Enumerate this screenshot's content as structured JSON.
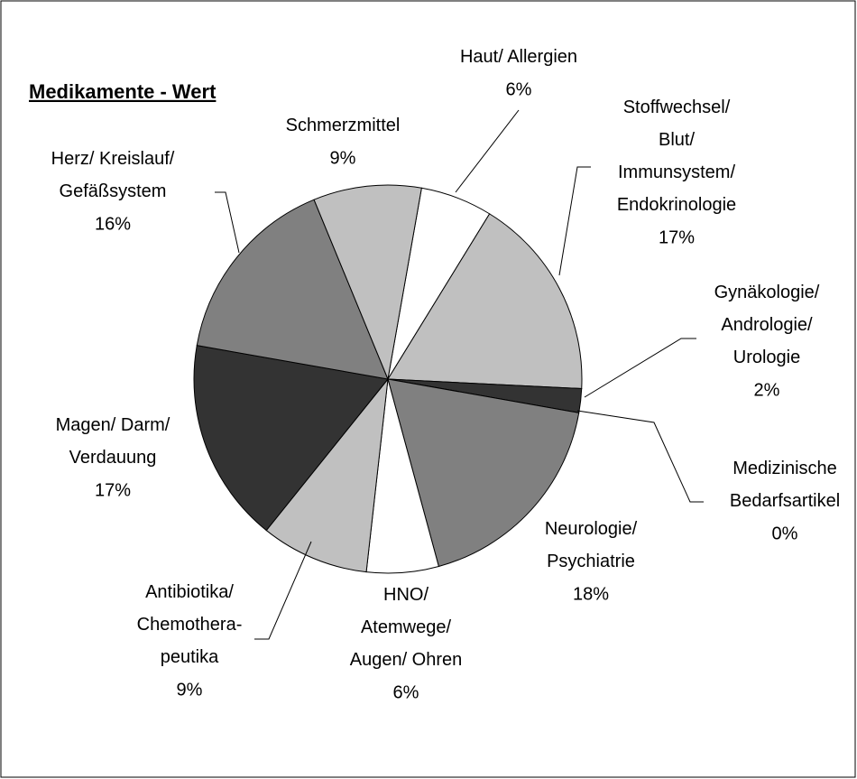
{
  "chart_data": {
    "type": "pie",
    "title": "Medikamente - Wert",
    "categories": [
      "Haut/ Allergien",
      "Stoffwechsel/\nBlut/\nImmunsystem/\nEndokrinologie",
      "Gynäkologie/\nAndrologie/\nUrologie",
      "Medizinische\nBedarfsartikel",
      "Neurologie/\nPsychiatrie",
      "HNO/\nAtemwege/\nAugen/ Ohren",
      "Antibiotika/\nChemothera-\npeutika",
      "Magen/ Darm/\nVerdauung",
      "Herz/ Kreislauf/\nGefäßsystem",
      "Schmerzmittel"
    ],
    "values": [
      6,
      17,
      2,
      0,
      18,
      6,
      9,
      17,
      16,
      9
    ],
    "value_labels": [
      "6%",
      "17%",
      "2%",
      "0%",
      "18%",
      "6%",
      "9%",
      "17%",
      "16%",
      "9%"
    ],
    "colors": [
      "#ffffff",
      "#c0c0c0",
      "#333333",
      "#ffffff",
      "#808080",
      "#ffffff",
      "#c0c0c0",
      "#333333",
      "#808080",
      "#c0c0c0"
    ]
  }
}
